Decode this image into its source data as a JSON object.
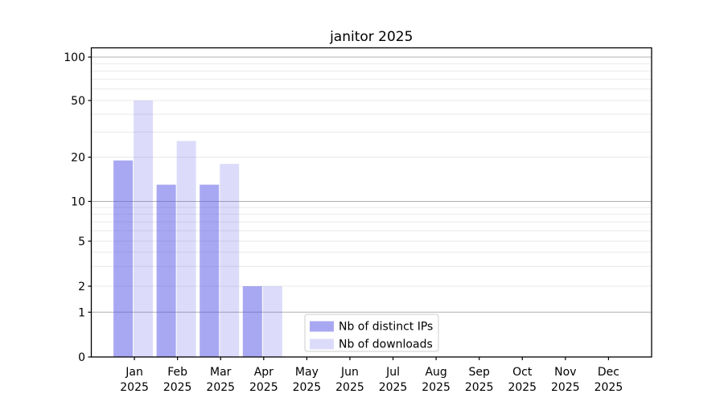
{
  "chart_data": {
    "type": "bar",
    "title": "janitor 2025",
    "xlabel": "",
    "ylabel": "",
    "categories": [
      "Jan 2025",
      "Feb 2025",
      "Mar 2025",
      "Apr 2025",
      "May 2025",
      "Jun 2025",
      "Jul 2025",
      "Aug 2025",
      "Sep 2025",
      "Oct 2025",
      "Nov 2025",
      "Dec 2025"
    ],
    "series": [
      {
        "name": "Nb of distinct IPs",
        "color": "rgba(81,81,229,0.5)",
        "values": [
          19,
          13,
          13,
          2,
          0,
          0,
          0,
          0,
          0,
          0,
          0,
          0
        ]
      },
      {
        "name": "Nb of downloads",
        "color": "rgba(81,81,229,0.2)",
        "values": [
          50,
          26,
          18,
          2,
          0,
          0,
          0,
          0,
          0,
          0,
          0,
          0
        ]
      }
    ],
    "y_scale": "log-like with zero baseline",
    "y_ticks": [
      0,
      1,
      2,
      5,
      10,
      20,
      50,
      100
    ],
    "ylim": [
      0,
      116
    ],
    "grid": {
      "major_lines": [
        1,
        10,
        100
      ],
      "minor_lines": [
        2,
        3,
        4,
        5,
        6,
        7,
        8,
        9,
        20,
        30,
        40,
        50,
        60,
        70,
        80,
        90
      ],
      "major_color": "#b0b0b0",
      "minor_color": "#e9e9e9"
    },
    "legend_position": "lower center inside plot"
  },
  "colors": {
    "background": "#ffffff",
    "axis": "#000000",
    "tick_text": "#000000",
    "legend_border": "#cccccc"
  }
}
